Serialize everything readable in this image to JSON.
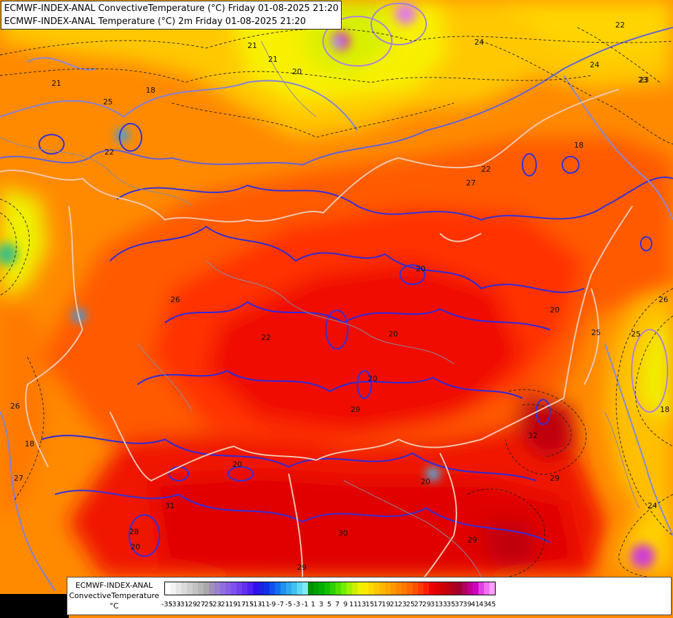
{
  "titles": {
    "line1": "ECMWF-INDEX-ANAL ConvectiveTemperature (°C) Friday 01-08-2025 21:20",
    "line2": "ECMWF-INDEX-ANAL Temperature (°C) 2m Friday 01-08-2025 21:20"
  },
  "legend": {
    "title_line1": "ECMWF-INDEX-ANAL",
    "title_line2": "ConvectiveTemperature",
    "unit": "°C",
    "tick_labels": [
      "-35",
      "-33",
      "-31",
      "-29",
      "-27",
      "-25",
      "-23",
      "-21",
      "-19",
      "-17",
      "-15",
      "-13",
      "-11",
      "-9",
      "-7",
      "-5",
      "-3",
      "-1",
      "1",
      "3",
      "5",
      "7",
      "9",
      "11",
      "13",
      "15",
      "17",
      "19",
      "21",
      "23",
      "25",
      "27",
      "29",
      "31",
      "33",
      "35",
      "37",
      "39",
      "41",
      "43",
      "45"
    ],
    "colors": [
      "#ffffff",
      "#f2f2f2",
      "#e6e6e6",
      "#dadada",
      "#cecece",
      "#c2c2c2",
      "#b6b6b6",
      "#aaaaaa",
      "#a090b8",
      "#9a80d0",
      "#9070e0",
      "#8a60e8",
      "#8050f0",
      "#7040f0",
      "#6030f0",
      "#5020f0",
      "#3010f0",
      "#2020e0",
      "#1030e8",
      "#1050f0",
      "#1070f0",
      "#2090f0",
      "#30a8f0",
      "#40c0f0",
      "#60d8f0",
      "#80e8f8",
      "#009000",
      "#00a000",
      "#00b000",
      "#10c000",
      "#30d000",
      "#50e000",
      "#70f000",
      "#a0f000",
      "#c8f000",
      "#f0f000",
      "#ffe800",
      "#ffd800",
      "#ffc800",
      "#ffb800",
      "#ffa800",
      "#ff9800",
      "#ff8800",
      "#ff7800",
      "#ff6800",
      "#ff5000",
      "#ff3800",
      "#ff2000",
      "#f00000",
      "#e00000",
      "#d00000",
      "#c00010",
      "#b00020",
      "#a00030",
      "#b00060",
      "#c00090",
      "#d000c0",
      "#e040e0",
      "#f070f0",
      "#ffa0ff"
    ]
  },
  "contour_labels": [
    {
      "text": "21"
    },
    {
      "text": "25"
    },
    {
      "text": "18"
    },
    {
      "text": "20"
    },
    {
      "text": "21"
    },
    {
      "text": "24"
    },
    {
      "text": "22"
    },
    {
      "text": "23"
    },
    {
      "text": "24"
    },
    {
      "text": "21"
    },
    {
      "text": "18"
    },
    {
      "text": "27"
    },
    {
      "text": "22"
    },
    {
      "text": "26"
    },
    {
      "text": "20"
    },
    {
      "text": "20"
    },
    {
      "text": "20"
    },
    {
      "text": "20"
    },
    {
      "text": "22"
    },
    {
      "text": "26"
    },
    {
      "text": "25"
    },
    {
      "text": "18"
    },
    {
      "text": "27"
    },
    {
      "text": "20"
    },
    {
      "text": "29"
    },
    {
      "text": "20"
    },
    {
      "text": "31"
    },
    {
      "text": "28"
    },
    {
      "text": "20"
    },
    {
      "text": "30"
    },
    {
      "text": "29"
    },
    {
      "text": "32"
    },
    {
      "text": "29"
    },
    {
      "text": "26"
    },
    {
      "text": "25"
    },
    {
      "text": "22"
    },
    {
      "text": "18"
    },
    {
      "text": "24"
    },
    {
      "text": "23"
    },
    {
      "text": "29"
    }
  ]
}
